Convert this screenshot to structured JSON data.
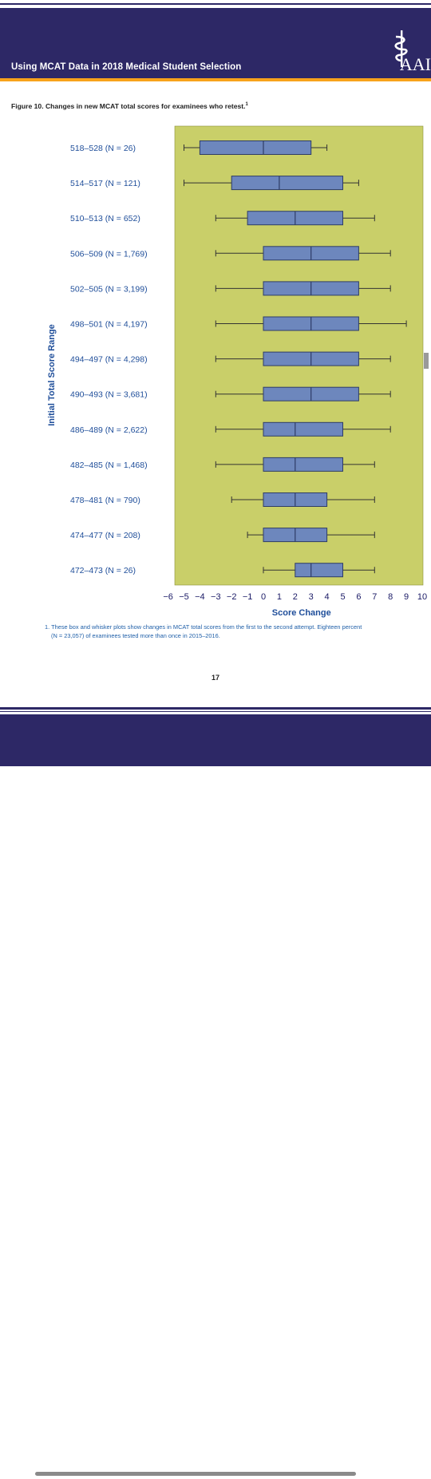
{
  "header": {
    "title": "Using MCAT Data in 2018 Medical Student Selection",
    "brand": "AAI"
  },
  "caption": {
    "text": "Figure 10. Changes in new MCAT total scores for examinees who retest.",
    "sup": "1"
  },
  "footnote": {
    "line1": "1. These box and whisker plots show changes in MCAT total scores from the first to the second attempt. Eighteen percent",
    "line2": "(N = 23,057) of examinees tested more than once in 2015–2016."
  },
  "page_number": "17",
  "colors": {
    "header": "#2d2866",
    "accent": "#f7a21b",
    "plot_bg": "#c9cf69",
    "box": "#6d87bd",
    "label": "#1f4e9a"
  },
  "chart_data": {
    "type": "boxplot",
    "orientation": "horizontal",
    "xlabel": "Score Change",
    "ylabel": "Initial Total Score Range",
    "xlim": [
      -6,
      10
    ],
    "xticks": [
      "−6",
      "−5",
      "−4",
      "−3",
      "−2",
      "−1",
      "0",
      "1",
      "2",
      "3",
      "4",
      "5",
      "6",
      "7",
      "8",
      "9",
      "10"
    ],
    "categories": [
      "518–528 (N = 26)",
      "514–517 (N = 121)",
      "510–513 (N = 652)",
      "506–509 (N = 1,769)",
      "502–505 (N = 3,199)",
      "498–501 (N = 4,197)",
      "494–497 (N = 4,298)",
      "490–493 (N = 3,681)",
      "486–489 (N = 2,622)",
      "482–485 (N = 1,468)",
      "478–481 (N = 790)",
      "474–477 (N = 208)",
      "472–473 (N = 26)"
    ],
    "boxes": [
      {
        "min": -5,
        "q1": -4,
        "median": 0,
        "q3": 3,
        "max": 4
      },
      {
        "min": -5,
        "q1": -2,
        "median": 1,
        "q3": 5,
        "max": 6
      },
      {
        "min": -3,
        "q1": -1,
        "median": 2,
        "q3": 5,
        "max": 7
      },
      {
        "min": -3,
        "q1": 0,
        "median": 3,
        "q3": 6,
        "max": 8
      },
      {
        "min": -3,
        "q1": 0,
        "median": 3,
        "q3": 6,
        "max": 8
      },
      {
        "min": -3,
        "q1": 0,
        "median": 3,
        "q3": 6,
        "max": 9
      },
      {
        "min": -3,
        "q1": 0,
        "median": 3,
        "q3": 6,
        "max": 8
      },
      {
        "min": -3,
        "q1": 0,
        "median": 3,
        "q3": 6,
        "max": 8
      },
      {
        "min": -3,
        "q1": 0,
        "median": 2,
        "q3": 5,
        "max": 8
      },
      {
        "min": -3,
        "q1": 0,
        "median": 2,
        "q3": 5,
        "max": 7
      },
      {
        "min": -2,
        "q1": 0,
        "median": 2,
        "q3": 4,
        "max": 7
      },
      {
        "min": -1,
        "q1": 0,
        "median": 2,
        "q3": 4,
        "max": 7
      },
      {
        "min": 0,
        "q1": 2,
        "median": 3,
        "q3": 5,
        "max": 7
      }
    ]
  }
}
